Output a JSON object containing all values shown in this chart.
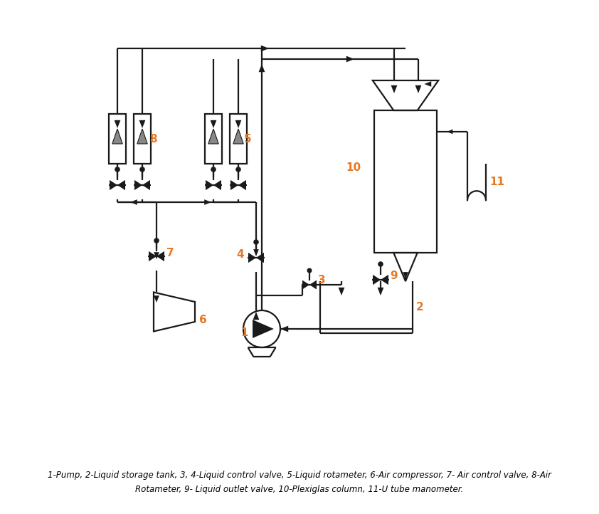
{
  "caption_line1": "1-Pump, 2-Liquid storage tank, 3, 4-Liquid control valve, 5-Liquid rotameter, 6-Air compressor, 7- Air control valve, 8-Air",
  "caption_line2": "Rotameter, 9- Liquid outlet valve, 10-Plexiglas column, 11-U tube manometer.",
  "label_color": "#E87722",
  "line_color": "#1a1a1a",
  "bg_color": "#ffffff",
  "lw": 1.6,
  "fig_width": 8.42,
  "fig_height": 7.22,
  "dpi": 100
}
